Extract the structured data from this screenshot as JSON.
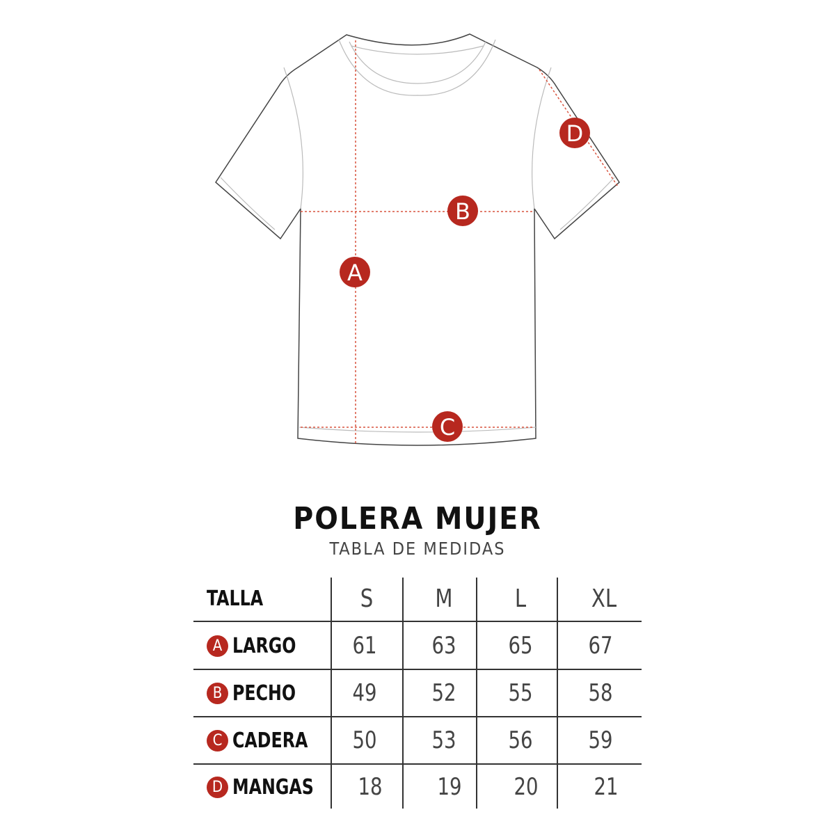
{
  "diagram": {
    "markers": [
      "A",
      "B",
      "C",
      "D"
    ],
    "accent_color": "#b7281f"
  },
  "title": "POLERA MUJER",
  "subtitle": "TABLA DE MEDIDAS",
  "table": {
    "header_label": "TALLA",
    "sizes": [
      "S",
      "M",
      "L",
      "XL"
    ],
    "rows": [
      {
        "badge": "A",
        "label": "LARGO",
        "values": [
          "61",
          "63",
          "65",
          "67"
        ]
      },
      {
        "badge": "B",
        "label": "PECHO",
        "values": [
          "49",
          "52",
          "55",
          "58"
        ]
      },
      {
        "badge": "C",
        "label": "CADERA",
        "values": [
          "50",
          "53",
          "56",
          "59"
        ]
      },
      {
        "badge": "D",
        "label": "MANGAS",
        "values": [
          "18",
          "19",
          "20",
          "21"
        ]
      }
    ]
  }
}
